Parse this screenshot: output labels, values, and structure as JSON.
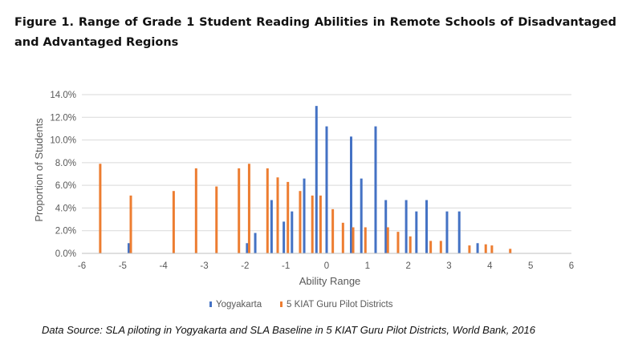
{
  "figure": {
    "title": "Figure 1. Range of Grade 1 Student Reading Abilities in Remote Schools of Disadvantaged and Advantaged Regions",
    "source": "Data Source: SLA piloting in Yogyakarta and SLA Baseline in 5 KIAT Guru Pilot Districts, World Bank, 2016"
  },
  "chart_data": {
    "type": "bar",
    "xlabel": "Ability Range",
    "ylabel": "Proportion of Students",
    "xlim": [
      -6,
      6
    ],
    "ylim": [
      0,
      14
    ],
    "x_ticks": [
      -6,
      -5,
      -4,
      -3,
      -2,
      -1,
      0,
      1,
      2,
      3,
      4,
      5,
      6
    ],
    "y_ticks": [
      0,
      2,
      4,
      6,
      8,
      10,
      12,
      14
    ],
    "y_tick_labels": [
      "0.0%",
      "2.0%",
      "4.0%",
      "6.0%",
      "8.0%",
      "10.0%",
      "12.0%",
      "14.0%"
    ],
    "legend_position": "bottom",
    "grid": {
      "horizontal": true,
      "vertical": false
    },
    "series": [
      {
        "name": "Yogyakarta",
        "color": "#4472C4",
        "points": [
          {
            "x": -4.85,
            "y": 0.9
          },
          {
            "x": -1.95,
            "y": 0.9
          },
          {
            "x": -1.75,
            "y": 1.8
          },
          {
            "x": -1.35,
            "y": 4.7
          },
          {
            "x": -1.05,
            "y": 2.8
          },
          {
            "x": -0.85,
            "y": 3.7
          },
          {
            "x": -0.55,
            "y": 6.6
          },
          {
            "x": -0.25,
            "y": 13.0
          },
          {
            "x": 0.0,
            "y": 11.2
          },
          {
            "x": 0.6,
            "y": 10.3
          },
          {
            "x": 0.85,
            "y": 6.6
          },
          {
            "x": 1.2,
            "y": 11.2
          },
          {
            "x": 1.45,
            "y": 4.7
          },
          {
            "x": 1.95,
            "y": 4.7
          },
          {
            "x": 2.2,
            "y": 3.7
          },
          {
            "x": 2.45,
            "y": 4.7
          },
          {
            "x": 2.95,
            "y": 3.7
          },
          {
            "x": 3.25,
            "y": 3.7
          },
          {
            "x": 3.7,
            "y": 0.9
          }
        ]
      },
      {
        "name": "5 KIAT Guru Pilot Districts",
        "color": "#ED7D31",
        "points": [
          {
            "x": -5.55,
            "y": 7.9
          },
          {
            "x": -4.8,
            "y": 5.1
          },
          {
            "x": -3.75,
            "y": 5.5
          },
          {
            "x": -3.2,
            "y": 7.5
          },
          {
            "x": -2.7,
            "y": 5.9
          },
          {
            "x": -2.15,
            "y": 7.5
          },
          {
            "x": -1.9,
            "y": 7.9
          },
          {
            "x": -1.45,
            "y": 7.5
          },
          {
            "x": -1.2,
            "y": 6.7
          },
          {
            "x": -0.95,
            "y": 6.3
          },
          {
            "x": -0.65,
            "y": 5.5
          },
          {
            "x": -0.35,
            "y": 5.1
          },
          {
            "x": -0.15,
            "y": 5.1
          },
          {
            "x": 0.15,
            "y": 3.9
          },
          {
            "x": 0.4,
            "y": 2.7
          },
          {
            "x": 0.65,
            "y": 2.3
          },
          {
            "x": 0.95,
            "y": 2.3
          },
          {
            "x": 1.5,
            "y": 2.3
          },
          {
            "x": 1.75,
            "y": 1.9
          },
          {
            "x": 2.05,
            "y": 1.5
          },
          {
            "x": 2.55,
            "y": 1.1
          },
          {
            "x": 2.8,
            "y": 1.1
          },
          {
            "x": 3.5,
            "y": 0.7
          },
          {
            "x": 3.9,
            "y": 0.8
          },
          {
            "x": 4.05,
            "y": 0.7
          },
          {
            "x": 4.5,
            "y": 0.4
          }
        ]
      }
    ]
  }
}
